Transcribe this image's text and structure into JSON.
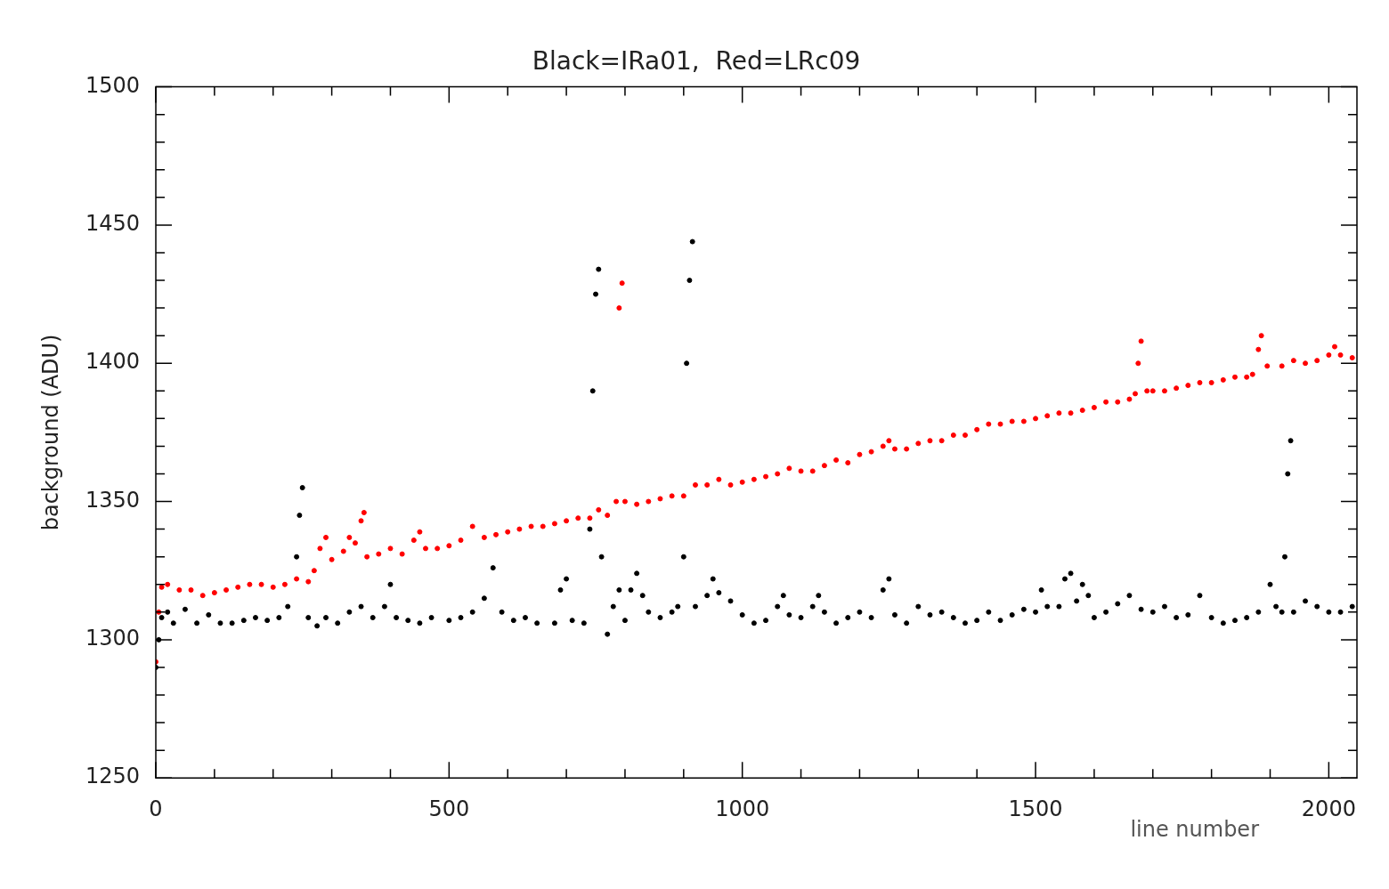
{
  "chart_data": {
    "type": "scatter",
    "title": "Black=IRa01,  Red=LRc09",
    "xlabel": "line number",
    "ylabel": "background (ADU)",
    "xlim": [
      0,
      2048
    ],
    "ylim": [
      1250,
      1500
    ],
    "xticks": [
      0,
      {
        "value": 100,
        "label": null
      },
      {
        "value": 200,
        "label": null
      },
      {
        "value": 300,
        "label": null
      },
      {
        "value": 400,
        "label": null
      },
      500,
      {
        "value": 600,
        "label": null
      },
      {
        "value": 700,
        "label": null
      },
      {
        "value": 800,
        "label": null
      },
      {
        "value": 900,
        "label": null
      },
      1000,
      {
        "value": 1100,
        "label": null
      },
      {
        "value": 1200,
        "label": null
      },
      {
        "value": 1300,
        "label": null
      },
      {
        "value": 1400,
        "label": null
      },
      1500,
      {
        "value": 1600,
        "label": null
      },
      {
        "value": 1700,
        "label": null
      },
      {
        "value": 1800,
        "label": null
      },
      {
        "value": 1900,
        "label": null
      },
      2000
    ],
    "yticks": [
      1250,
      {
        "value": 1260,
        "label": null
      },
      {
        "value": 1270,
        "label": null
      },
      {
        "value": 1280,
        "label": null
      },
      {
        "value": 1290,
        "label": null
      },
      1300,
      {
        "value": 1310,
        "label": null
      },
      {
        "value": 1320,
        "label": null
      },
      {
        "value": 1330,
        "label": null
      },
      {
        "value": 1340,
        "label": null
      },
      1350,
      {
        "value": 1360,
        "label": null
      },
      {
        "value": 1370,
        "label": null
      },
      {
        "value": 1380,
        "label": null
      },
      {
        "value": 1390,
        "label": null
      },
      1400,
      {
        "value": 1410,
        "label": null
      },
      {
        "value": 1420,
        "label": null
      },
      {
        "value": 1430,
        "label": null
      },
      {
        "value": 1440,
        "label": null
      },
      1450,
      {
        "value": 1460,
        "label": null
      },
      {
        "value": 1470,
        "label": null
      },
      {
        "value": 1480,
        "label": null
      },
      {
        "value": 1490,
        "label": null
      },
      1500
    ],
    "marker": "circle",
    "grid": false,
    "legend": false,
    "series": [
      {
        "color": "#000000",
        "x": [
          0,
          5,
          10,
          20,
          30,
          50,
          70,
          90,
          110,
          130,
          150,
          170,
          190,
          210,
          225,
          240,
          245,
          250,
          260,
          275,
          290,
          310,
          330,
          350,
          370,
          390,
          400,
          410,
          430,
          450,
          470,
          500,
          520,
          540,
          560,
          575,
          590,
          610,
          630,
          650,
          680,
          690,
          700,
          710,
          730,
          740,
          745,
          750,
          755,
          760,
          770,
          780,
          790,
          800,
          810,
          820,
          830,
          840,
          860,
          880,
          890,
          900,
          905,
          910,
          915,
          920,
          940,
          950,
          960,
          980,
          1000,
          1020,
          1040,
          1060,
          1070,
          1080,
          1100,
          1120,
          1130,
          1140,
          1160,
          1180,
          1200,
          1220,
          1240,
          1250,
          1260,
          1280,
          1300,
          1320,
          1340,
          1360,
          1380,
          1400,
          1420,
          1440,
          1460,
          1480,
          1500,
          1510,
          1520,
          1540,
          1550,
          1560,
          1570,
          1580,
          1590,
          1600,
          1620,
          1640,
          1660,
          1680,
          1700,
          1720,
          1740,
          1760,
          1780,
          1800,
          1820,
          1840,
          1860,
          1880,
          1900,
          1910,
          1920,
          1925,
          1930,
          1935,
          1940,
          1960,
          1980,
          2000,
          2020,
          2040
        ],
        "values": [
          1290,
          1300,
          1308,
          1310,
          1306,
          1311,
          1306,
          1309,
          1306,
          1306,
          1307,
          1308,
          1307,
          1308,
          1312,
          1330,
          1345,
          1355,
          1308,
          1305,
          1308,
          1306,
          1310,
          1312,
          1308,
          1312,
          1320,
          1308,
          1307,
          1306,
          1308,
          1307,
          1308,
          1310,
          1315,
          1326,
          1310,
          1307,
          1308,
          1306,
          1306,
          1318,
          1322,
          1307,
          1306,
          1340,
          1390,
          1425,
          1434,
          1330,
          1302,
          1312,
          1318,
          1307,
          1318,
          1324,
          1316,
          1310,
          1308,
          1310,
          1312,
          1330,
          1400,
          1430,
          1444,
          1312,
          1316,
          1322,
          1317,
          1314,
          1309,
          1306,
          1307,
          1312,
          1316,
          1309,
          1308,
          1312,
          1316,
          1310,
          1306,
          1308,
          1310,
          1308,
          1318,
          1322,
          1309,
          1306,
          1312,
          1309,
          1310,
          1308,
          1306,
          1307,
          1310,
          1307,
          1309,
          1311,
          1310,
          1318,
          1312,
          1312,
          1322,
          1324,
          1314,
          1320,
          1316,
          1308,
          1310,
          1313,
          1316,
          1311,
          1310,
          1312,
          1308,
          1309,
          1316,
          1308,
          1306,
          1307,
          1308,
          1310,
          1320,
          1312,
          1310,
          1330,
          1360,
          1372,
          1310,
          1314,
          1312,
          1310,
          1310,
          1312
        ]
      },
      {
        "color": "#ff0000",
        "x": [
          0,
          5,
          10,
          20,
          40,
          60,
          80,
          100,
          120,
          140,
          160,
          180,
          200,
          220,
          240,
          260,
          270,
          280,
          290,
          300,
          320,
          330,
          340,
          350,
          355,
          360,
          380,
          400,
          420,
          440,
          450,
          460,
          480,
          500,
          520,
          540,
          560,
          580,
          600,
          620,
          640,
          660,
          680,
          700,
          720,
          740,
          755,
          770,
          785,
          790,
          795,
          800,
          820,
          840,
          860,
          880,
          900,
          920,
          940,
          960,
          980,
          1000,
          1020,
          1040,
          1060,
          1080,
          1100,
          1120,
          1140,
          1160,
          1180,
          1200,
          1220,
          1240,
          1250,
          1260,
          1280,
          1300,
          1320,
          1340,
          1360,
          1380,
          1400,
          1420,
          1440,
          1460,
          1480,
          1500,
          1520,
          1540,
          1560,
          1580,
          1600,
          1620,
          1640,
          1660,
          1670,
          1675,
          1680,
          1690,
          1700,
          1720,
          1740,
          1760,
          1780,
          1800,
          1820,
          1840,
          1860,
          1870,
          1880,
          1885,
          1895,
          1920,
          1940,
          1960,
          1980,
          2000,
          2010,
          2020,
          2040
        ],
        "values": [
          1292,
          1310,
          1319,
          1320,
          1318,
          1318,
          1316,
          1317,
          1318,
          1319,
          1320,
          1320,
          1319,
          1320,
          1322,
          1321,
          1325,
          1333,
          1337,
          1329,
          1332,
          1337,
          1335,
          1343,
          1346,
          1330,
          1331,
          1333,
          1331,
          1336,
          1339,
          1333,
          1333,
          1334,
          1336,
          1341,
          1337,
          1338,
          1339,
          1340,
          1341,
          1341,
          1342,
          1343,
          1344,
          1344,
          1347,
          1345,
          1350,
          1420,
          1429,
          1350,
          1349,
          1350,
          1351,
          1352,
          1352,
          1356,
          1356,
          1358,
          1356,
          1357,
          1358,
          1359,
          1360,
          1362,
          1361,
          1361,
          1363,
          1365,
          1364,
          1367,
          1368,
          1370,
          1372,
          1369,
          1369,
          1371,
          1372,
          1372,
          1374,
          1374,
          1376,
          1378,
          1378,
          1379,
          1379,
          1380,
          1381,
          1382,
          1382,
          1383,
          1384,
          1386,
          1386,
          1387,
          1389,
          1400,
          1408,
          1390,
          1390,
          1390,
          1391,
          1392,
          1393,
          1393,
          1394,
          1395,
          1395,
          1396,
          1405,
          1410,
          1399,
          1399,
          1401,
          1400,
          1401,
          1403,
          1406,
          1403,
          1402
        ]
      }
    ]
  }
}
